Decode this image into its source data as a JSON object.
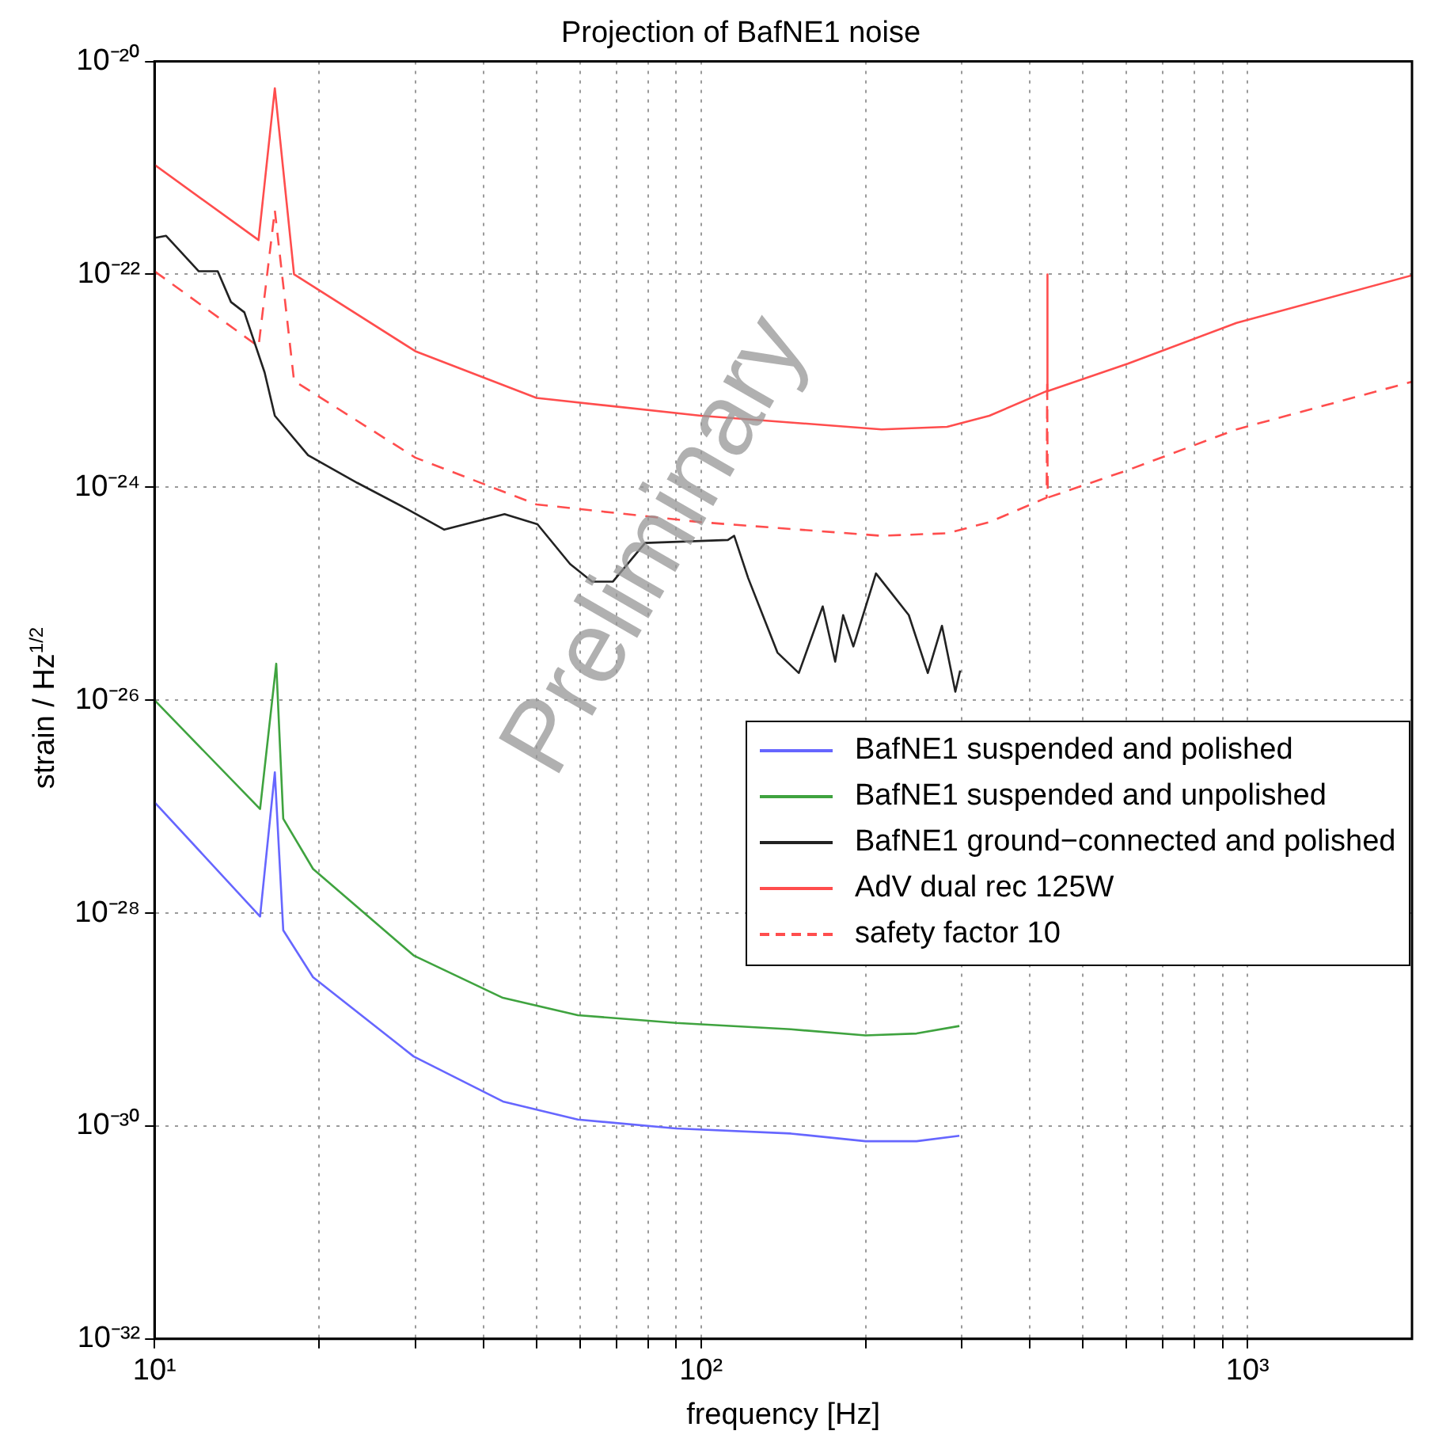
{
  "chart_data": {
    "type": "line",
    "title": "Projection of BafNE1 noise",
    "xlabel": "frequency [Hz]",
    "ylabel": "strain / Hz$^{1/2}$",
    "log": "xy",
    "grid": true,
    "legend": "right",
    "marker": "none",
    "xlim": [
      10,
      2000
    ],
    "xticks": [
      {
        "value": 10,
        "label": "10¹"
      },
      {
        "value": 20,
        "label": null
      },
      {
        "value": 30,
        "label": null
      },
      {
        "value": 40,
        "label": null
      },
      {
        "value": 50,
        "label": null
      },
      {
        "value": 60,
        "label": null
      },
      {
        "value": 70,
        "label": null
      },
      {
        "value": 80,
        "label": null
      },
      {
        "value": 90,
        "label": null
      },
      {
        "value": 100,
        "label": "10²"
      },
      {
        "value": 200,
        "label": null
      },
      {
        "value": 300,
        "label": null
      },
      {
        "value": 400,
        "label": null
      },
      {
        "value": 500,
        "label": null
      },
      {
        "value": 600,
        "label": null
      },
      {
        "value": 700,
        "label": null
      },
      {
        "value": 800,
        "label": null
      },
      {
        "value": 900,
        "label": null
      },
      {
        "value": 1000,
        "label": "10³"
      }
    ],
    "ylim": [
      1e-32,
      1e-20
    ],
    "yticks": [
      {
        "value": 1e-32,
        "label": "10⁻³²"
      },
      {
        "value": 1e-30,
        "label": "10⁻³⁰"
      },
      {
        "value": 1e-28,
        "label": "10⁻²⁸"
      },
      {
        "value": 1e-26,
        "label": "10⁻²⁶"
      },
      {
        "value": 1e-24,
        "label": "10⁻²⁴"
      },
      {
        "value": 1e-22,
        "label": "10⁻²²"
      },
      {
        "value": 1e-20,
        "label": "10⁻²⁰"
      }
    ],
    "annotations": [
      "Preliminary"
    ],
    "series": [
      {
        "name": "BafNE1 suspended and polished",
        "color": "#6666ff",
        "x": [
          10,
          15.6,
          16.6,
          17.2,
          19.5,
          29.8,
          43.4,
          59.5,
          90,
          146,
          200,
          248,
          297
        ],
        "values": [
          1.1e-27,
          9.3e-29,
          2.1e-27,
          6.9e-29,
          2.5e-29,
          4.5e-30,
          1.7e-30,
          1.15e-30,
          9.5e-31,
          8.5e-31,
          7.2e-31,
          7.2e-31,
          8.1e-31
        ]
      },
      {
        "name": "BafNE1 suspended and unpolished",
        "color": "#3fa33f",
        "x": [
          10,
          15.6,
          16.7,
          17.2,
          19.5,
          29.8,
          43.4,
          59.5,
          90,
          146,
          200,
          248,
          297
        ],
        "values": [
          1e-26,
          9.5e-28,
          2.2e-26,
          7.7e-28,
          2.6e-28,
          4e-29,
          1.6e-29,
          1.1e-29,
          9.3e-30,
          8.1e-30,
          7.1e-30,
          7.4e-30,
          8.7e-30
        ]
      },
      {
        "name": "BafNE1 ground−connected and polished",
        "color": "#222222",
        "x": [
          10,
          10.5,
          12.05,
          13.05,
          13.8,
          14.6,
          15.9,
          16.6,
          19.1,
          23.5,
          28.9,
          33.9,
          43.7,
          50.2,
          57.6,
          63.2,
          69,
          79,
          112,
          115,
          122,
          138,
          151,
          167,
          176,
          182,
          190,
          209,
          240,
          260,
          276,
          292,
          298
        ],
        "values": [
          2.2e-22,
          2.3e-22,
          1.07e-22,
          1.07e-22,
          5.5e-23,
          4.4e-23,
          1.2e-23,
          4.7e-24,
          2e-24,
          1.1e-24,
          6.3e-25,
          4e-25,
          5.6e-25,
          4.5e-25,
          1.9e-25,
          1.3e-25,
          1.3e-25,
          3e-25,
          3.2e-25,
          3.5e-25,
          1.4e-25,
          2.8e-26,
          1.8e-26,
          7.6e-26,
          2.3e-26,
          6.3e-26,
          3.2e-26,
          1.55e-25,
          6.3e-26,
          1.8e-26,
          5e-26,
          1.2e-26,
          1.9e-26
        ]
      },
      {
        "name": "AdV dual rec 125W",
        "color": "#ff4d4d",
        "x": [
          10,
          15.5,
          16.6,
          18,
          30,
          50,
          100,
          214,
          282,
          337,
          429,
          430,
          431,
          604,
          955,
          2000
        ],
        "values": [
          1.07e-21,
          2.1e-22,
          5.6e-21,
          1e-22,
          1.9e-23,
          6.9e-24,
          4.7e-24,
          3.5e-24,
          3.7e-24,
          4.7e-24,
          8e-24,
          1e-22,
          8e-24,
          1.45e-23,
          3.5e-23,
          9.8e-23
        ]
      },
      {
        "name": "safety factor 10",
        "color": "#ff4d4d",
        "line_style": "dashed",
        "x": [
          10,
          15.5,
          16.6,
          18,
          30,
          50,
          100,
          214,
          282,
          337,
          429,
          430,
          431,
          604,
          955,
          2000
        ],
        "values": [
          1.07e-22,
          2.1e-23,
          4e-22,
          1e-23,
          1.9e-24,
          6.9e-25,
          4.7e-25,
          3.5e-25,
          3.7e-25,
          4.7e-25,
          8e-25,
          1e-23,
          8e-25,
          1.45e-24,
          3.5e-24,
          9.8e-24
        ]
      }
    ]
  }
}
